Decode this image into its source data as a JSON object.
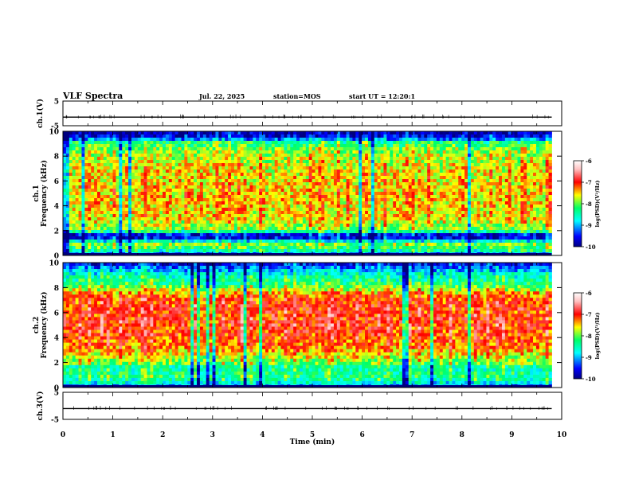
{
  "header": {
    "title": "VLF Spectra",
    "date": "Jul. 22, 2025",
    "station": "station=MOS",
    "start": "start UT =  12:20:1"
  },
  "chart_data": [
    {
      "type": "line",
      "panel": "ch1-waveform",
      "ylabel": "ch.1(V)",
      "ylim": [
        -5,
        5
      ],
      "y_ticks": [
        "5",
        "-5"
      ],
      "x": [
        0,
        9.8
      ],
      "values": [
        -1.5,
        -1.5
      ]
    },
    {
      "type": "heatmap",
      "panel": "ch1-spectrogram",
      "ylabel_line1": "ch.1",
      "ylabel_line2": "Frequency (kHz)",
      "ylim": [
        0,
        10
      ],
      "y_ticks": [
        "0",
        "2",
        "4",
        "6",
        "8",
        "10"
      ],
      "xlim": [
        0,
        9.8
      ],
      "colorbar": {
        "label": "log(PSD)(V²/Hz)",
        "range": [
          -10,
          -6
        ],
        "ticks": [
          "-6",
          "-7",
          "-8",
          "-9",
          "-10"
        ]
      },
      "dominant_log_psd": "-7.5 (2-9 kHz), -9 to -10 near 1.5 kHz and above 9.5 kHz"
    },
    {
      "type": "heatmap",
      "panel": "ch2-spectrogram",
      "ylabel_line1": "ch.2",
      "ylabel_line2": "Frequency (kHz)",
      "ylim": [
        0,
        10
      ],
      "y_ticks": [
        "0",
        "2",
        "4",
        "6",
        "8",
        "10"
      ],
      "xlim": [
        0,
        9.8
      ],
      "colorbar": {
        "label": "log(PSD)(V²/Hz)",
        "range": [
          -10,
          -6
        ],
        "ticks": [
          "-6",
          "-7",
          "-8",
          "-9",
          "-10"
        ]
      },
      "dominant_log_psd": "-7 (3-7.5 kHz), -8 near 8-9 kHz, -9 above 9.5 kHz"
    },
    {
      "type": "line",
      "panel": "ch3-waveform",
      "ylabel": "ch.3(V)",
      "ylim": [
        -5,
        5
      ],
      "y_ticks": [
        "5",
        "-5"
      ],
      "x": [
        0,
        9.8
      ],
      "values": [
        -1.0,
        -1.0
      ]
    }
  ],
  "x_axis": {
    "label": "Time (min)",
    "range": [
      0,
      10
    ],
    "ticks": [
      "0",
      "1",
      "2",
      "3",
      "4",
      "5",
      "6",
      "7",
      "8",
      "9",
      "10"
    ]
  },
  "colors": {
    "colormap": [
      "#00007f",
      "#0000ff",
      "#00ffff",
      "#00ff66",
      "#ffff00",
      "#ff0000",
      "#ffc0c0",
      "#ffffff"
    ]
  }
}
